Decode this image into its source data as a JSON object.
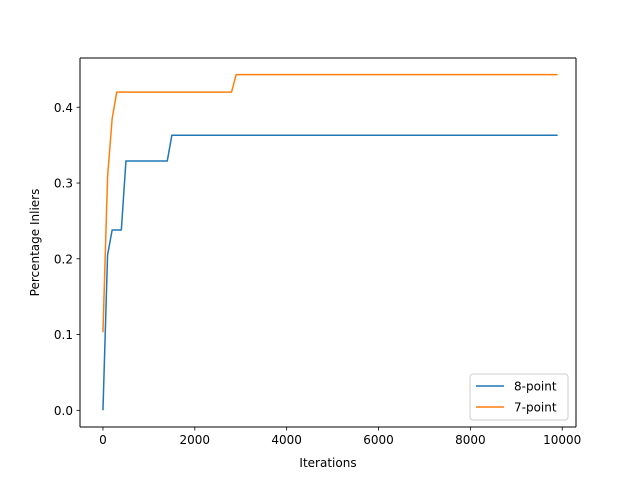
{
  "chart_data": {
    "type": "line",
    "title": "",
    "xlabel": "Iterations",
    "ylabel": "Percentage Inliers",
    "xlim": [
      -500,
      10300
    ],
    "ylim": [
      -0.022,
      0.465
    ],
    "xticks": [
      0,
      2000,
      4000,
      6000,
      8000,
      10000
    ],
    "xtick_labels": [
      "0",
      "2000",
      "4000",
      "6000",
      "8000",
      "10000"
    ],
    "yticks": [
      0.0,
      0.1,
      0.2,
      0.3,
      0.4
    ],
    "ytick_labels": [
      "0.0",
      "0.1",
      "0.2",
      "0.3",
      "0.4"
    ],
    "grid": false,
    "legend_position": "lower-right",
    "series": [
      {
        "name": "8-point",
        "color": "#1f77b4",
        "x": [
          0,
          100,
          200,
          400,
          500,
          1400,
          1500,
          9900
        ],
        "y": [
          0.0,
          0.205,
          0.238,
          0.238,
          0.329,
          0.329,
          0.363,
          0.363
        ]
      },
      {
        "name": "7-point",
        "color": "#ff7f0e",
        "x": [
          0,
          100,
          200,
          300,
          2800,
          2900,
          9900
        ],
        "y": [
          0.103,
          0.308,
          0.385,
          0.42,
          0.42,
          0.443,
          0.443
        ]
      }
    ]
  }
}
